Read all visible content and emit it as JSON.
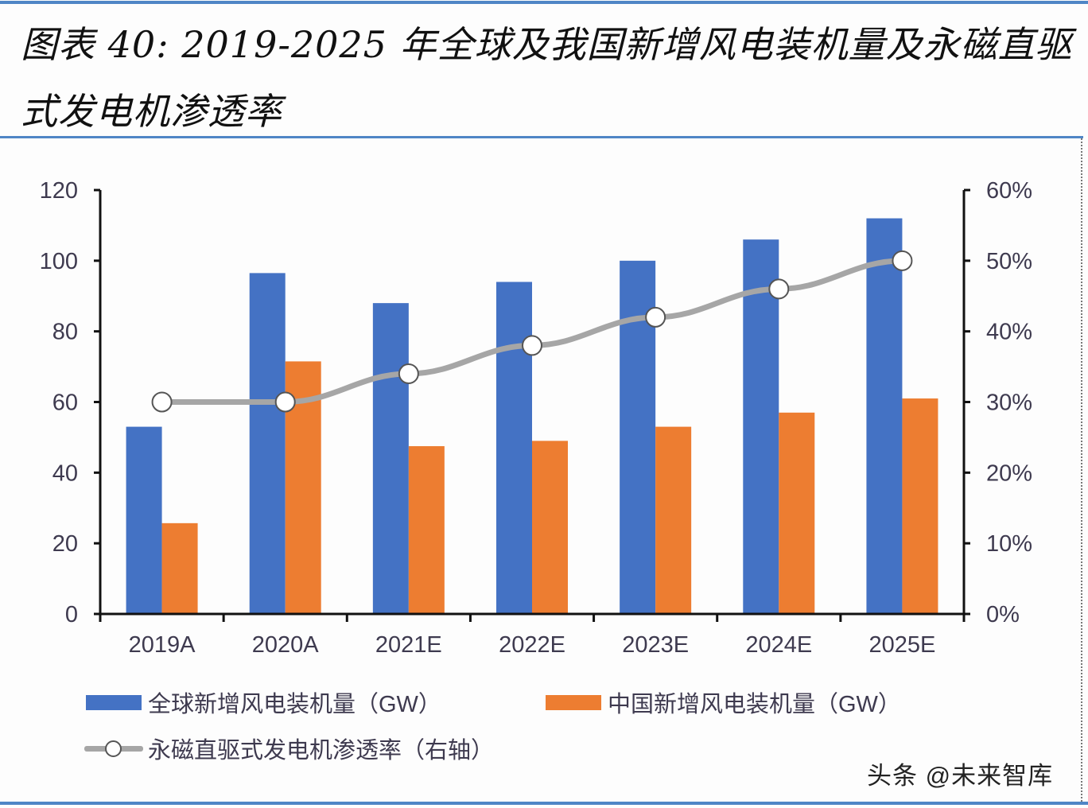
{
  "header": {
    "title": "图表 40: 2019-2025 年全球及我国新增风电装机量及永磁直驱式发电机渗透率"
  },
  "watermark": "头条 @未来智库",
  "colors": {
    "global": "#4472c4",
    "china": "#ed7d31",
    "penetration": "#a6a6a6",
    "axis": "#111111",
    "text": "#3e3a4f",
    "rule": "#4f86c6"
  },
  "legend": {
    "global": "全球新增风电装机量（GW）",
    "china": "中国新增风电装机量（GW）",
    "penetration": "永磁直驱式发电机渗透率（右轴）"
  },
  "chart_data": {
    "type": "bar",
    "title": "2019-2025 年全球及我国新增风电装机量及永磁直驱式发电机渗透率",
    "categories": [
      "2019A",
      "2020A",
      "2021E",
      "2022E",
      "2023E",
      "2024E",
      "2025E"
    ],
    "series": [
      {
        "name": "全球新增风电装机量（GW）",
        "type": "bar",
        "axis": "left",
        "values": [
          53,
          96.5,
          88,
          94,
          100,
          106,
          112
        ]
      },
      {
        "name": "中国新增风电装机量（GW）",
        "type": "bar",
        "axis": "left",
        "values": [
          25.7,
          71.5,
          47.5,
          49,
          53,
          57,
          61
        ]
      },
      {
        "name": "永磁直驱式发电机渗透率（右轴）",
        "type": "line",
        "axis": "right",
        "values": [
          0.3,
          0.3,
          0.34,
          0.38,
          0.42,
          0.46,
          0.5
        ]
      }
    ],
    "left_axis": {
      "ylim": [
        0,
        120
      ],
      "ticks": [
        0,
        20,
        40,
        60,
        80,
        100,
        120
      ],
      "tick_labels": [
        "0",
        "20",
        "40",
        "60",
        "80",
        "100",
        "120"
      ]
    },
    "right_axis": {
      "ylim": [
        0,
        0.6
      ],
      "ticks": [
        0,
        0.1,
        0.2,
        0.3,
        0.4,
        0.5,
        0.6
      ],
      "tick_labels": [
        "0%",
        "10%",
        "20%",
        "30%",
        "40%",
        "50%",
        "60%"
      ]
    },
    "xlabel": "",
    "ylabel": "",
    "grid": false,
    "legend_position": "bottom"
  }
}
